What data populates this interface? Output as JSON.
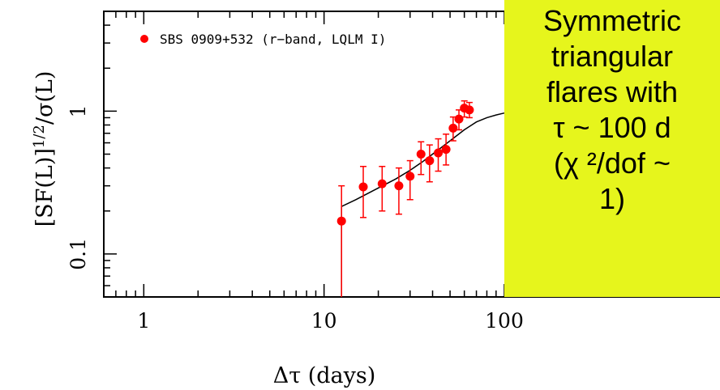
{
  "chart_data": {
    "type": "scatter",
    "title": "",
    "xlabel": "Δτ (days)",
    "ylabel": "[SF(L)]^1/2/σ(L)",
    "xscale": "log",
    "yscale": "log",
    "xlim": [
      0.6,
      100
    ],
    "ylim": [
      0.05,
      5
    ],
    "x_ticks": [
      {
        "value": 1,
        "label": "1"
      },
      {
        "value": 10,
        "label": "10"
      },
      {
        "value": 100,
        "label": "100"
      }
    ],
    "y_ticks": [
      {
        "value": 0.1,
        "label": "0.1"
      },
      {
        "value": 1,
        "label": "1"
      }
    ],
    "legend": {
      "placement": "top-left",
      "label": "SBS 0909+532 (r−band, LQLM I)"
    },
    "series": [
      {
        "name": "SBS 0909+532 (r−band, LQLM I)",
        "color": "#ff0000",
        "points": [
          {
            "x": 12.5,
            "y": 0.17,
            "ylo": 0.05,
            "yhi": 0.3
          },
          {
            "x": 16.5,
            "y": 0.295,
            "ylo": 0.18,
            "yhi": 0.41
          },
          {
            "x": 21,
            "y": 0.31,
            "ylo": 0.2,
            "yhi": 0.41
          },
          {
            "x": 26,
            "y": 0.3,
            "ylo": 0.19,
            "yhi": 0.4
          },
          {
            "x": 30,
            "y": 0.35,
            "ylo": 0.24,
            "yhi": 0.45
          },
          {
            "x": 34.5,
            "y": 0.5,
            "ylo": 0.36,
            "yhi": 0.61
          },
          {
            "x": 38.5,
            "y": 0.45,
            "ylo": 0.32,
            "yhi": 0.58
          },
          {
            "x": 43,
            "y": 0.51,
            "ylo": 0.38,
            "yhi": 0.64
          },
          {
            "x": 47.5,
            "y": 0.54,
            "ylo": 0.42,
            "yhi": 0.69
          },
          {
            "x": 52,
            "y": 0.76,
            "ylo": 0.62,
            "yhi": 0.91
          },
          {
            "x": 56,
            "y": 0.88,
            "ylo": 0.74,
            "yhi": 1.02
          },
          {
            "x": 60,
            "y": 1.05,
            "ylo": 0.91,
            "yhi": 1.18
          },
          {
            "x": 64,
            "y": 1.02,
            "ylo": 0.9,
            "yhi": 1.15
          }
        ]
      }
    ],
    "model_curve": {
      "name": "",
      "color": "#000000",
      "points": [
        {
          "x": 12.5,
          "y": 0.05
        },
        {
          "x": 12.5,
          "y": 0.215
        },
        {
          "x": 15,
          "y": 0.24
        },
        {
          "x": 20,
          "y": 0.29
        },
        {
          "x": 25,
          "y": 0.335
        },
        {
          "x": 30,
          "y": 0.385
        },
        {
          "x": 35,
          "y": 0.44
        },
        {
          "x": 40,
          "y": 0.5
        },
        {
          "x": 45,
          "y": 0.56
        },
        {
          "x": 50,
          "y": 0.62
        },
        {
          "x": 55,
          "y": 0.68
        },
        {
          "x": 60,
          "y": 0.74
        },
        {
          "x": 65,
          "y": 0.79
        },
        {
          "x": 70,
          "y": 0.84
        },
        {
          "x": 80,
          "y": 0.9
        },
        {
          "x": 90,
          "y": 0.94
        },
        {
          "x": 100,
          "y": 0.97
        }
      ]
    }
  },
  "annotation": {
    "lines": [
      "Symmetric",
      "triangular",
      "flares with",
      "τ   ~ 100 d",
      "(χ  ²/dof ~",
      "1)"
    ],
    "background": "#e6f51c"
  }
}
